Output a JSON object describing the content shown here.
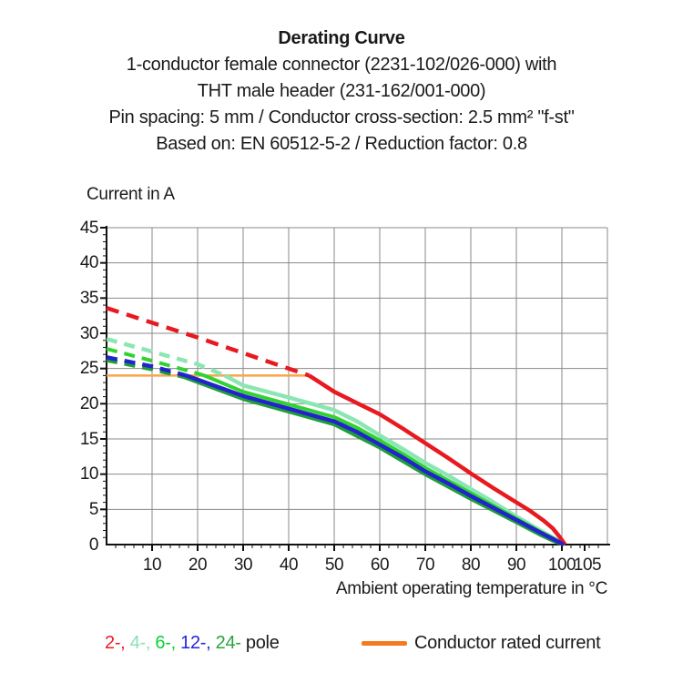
{
  "title": {
    "main": "Derating Curve",
    "lines": [
      "1-conductor female connector (2231-102/026-000) with",
      "THT male header (231-162/001-000)",
      "Pin spacing: 5 mm / Conductor cross-section: 2.5 mm² \"f-st\"",
      "Based on: EN 60512-5-2 / Reduction factor: 0.8"
    ]
  },
  "axes": {
    "y_title": "Current in A",
    "x_title": "Ambient operating temperature in °C"
  },
  "legend": {
    "pole_items": [
      {
        "text": "2-,",
        "color": "#ed1c24"
      },
      {
        "text": "4-,",
        "color": "#8ce0b8"
      },
      {
        "text": "6-,",
        "color": "#0ad137"
      },
      {
        "text": "12-,",
        "color": "#2323dd"
      },
      {
        "text": "24-",
        "color": "#28a33c"
      }
    ],
    "pole_suffix": "pole",
    "rated_label": "Conductor rated current",
    "rated_swatch_color": "#f5791f"
  },
  "chart_data": {
    "type": "line",
    "title": "Derating Curve",
    "xlabel": "Ambient operating temperature in °C",
    "ylabel": "Current in A",
    "xlim": [
      0,
      110
    ],
    "ylim": [
      0,
      45
    ],
    "grid": true,
    "grid_color": "#8a8a8a",
    "axis_color": "#111111",
    "x_major_ticks": [
      10,
      20,
      30,
      40,
      50,
      60,
      70,
      80,
      90,
      100,
      105
    ],
    "x_grid_ticks": [
      10,
      20,
      30,
      40,
      50,
      60,
      70,
      80,
      90,
      100
    ],
    "x_minor_step": 2,
    "y_ticks": [
      0,
      5,
      10,
      15,
      20,
      25,
      30,
      35,
      40,
      45
    ],
    "y_minor_step": 1,
    "rated_line": {
      "name": "Conductor rated current",
      "value": 24,
      "x_start": 0,
      "x_end": 44.5,
      "color": "#f9a54a",
      "width": 2.5
    },
    "series": [
      {
        "name": "4-pole",
        "color": "#8ce6b4",
        "width": 4.5,
        "dash": "12 8",
        "dashed_points": [
          [
            0,
            29.2
          ],
          [
            10,
            27.4
          ],
          [
            20,
            25.6
          ],
          [
            26,
            24.0
          ]
        ],
        "solid_points": [
          [
            26,
            24.0
          ],
          [
            30,
            22.6
          ],
          [
            40,
            20.9
          ],
          [
            50,
            19.1
          ],
          [
            55,
            17.5
          ],
          [
            60,
            15.5
          ],
          [
            65,
            13.6
          ],
          [
            70,
            11.6
          ],
          [
            75,
            9.8
          ],
          [
            80,
            7.9
          ],
          [
            85,
            6.0
          ],
          [
            90,
            4.0
          ],
          [
            95,
            2.1
          ],
          [
            98,
            1.0
          ],
          [
            100.6,
            0
          ]
        ]
      },
      {
        "name": "6-pole",
        "color": "#2fd32f",
        "width": 4,
        "dash": "12 8",
        "dashed_points": [
          [
            0,
            27.8
          ],
          [
            10,
            26.1
          ],
          [
            20,
            24.3
          ],
          [
            21.5,
            24.0
          ]
        ],
        "solid_points": [
          [
            21.5,
            24.0
          ],
          [
            30,
            21.7
          ],
          [
            40,
            19.9
          ],
          [
            50,
            18.1
          ],
          [
            55,
            16.6
          ],
          [
            60,
            14.8
          ],
          [
            65,
            12.9
          ],
          [
            70,
            10.9
          ],
          [
            75,
            9.1
          ],
          [
            80,
            7.3
          ],
          [
            85,
            5.5
          ],
          [
            90,
            3.7
          ],
          [
            95,
            1.9
          ],
          [
            98,
            0.9
          ],
          [
            100.5,
            0
          ]
        ]
      },
      {
        "name": "2-pole",
        "color": "#e8191f",
        "width": 4.5,
        "dash": "14 9",
        "dashed_points": [
          [
            0,
            33.6
          ],
          [
            10,
            31.5
          ],
          [
            20,
            29.4
          ],
          [
            30,
            27.2
          ],
          [
            40,
            25.0
          ],
          [
            44.5,
            24.0
          ]
        ],
        "solid_points": [
          [
            44.5,
            24.0
          ],
          [
            50,
            21.7
          ],
          [
            55,
            20.1
          ],
          [
            60,
            18.5
          ],
          [
            65,
            16.5
          ],
          [
            70,
            14.4
          ],
          [
            75,
            12.3
          ],
          [
            80,
            10.1
          ],
          [
            85,
            8.0
          ],
          [
            90,
            6.0
          ],
          [
            93,
            4.8
          ],
          [
            96,
            3.4
          ],
          [
            98,
            2.3
          ],
          [
            99.5,
            1.1
          ],
          [
            100.7,
            0
          ]
        ]
      },
      {
        "name": "24-pole",
        "color": "#1f9e38",
        "width": 4.5,
        "dash": "12 8",
        "dashed_points": [
          [
            0,
            26.2
          ],
          [
            10,
            24.9
          ],
          [
            17,
            23.8
          ]
        ],
        "solid_points": [
          [
            17,
            23.8
          ],
          [
            30,
            20.7
          ],
          [
            40,
            18.9
          ],
          [
            50,
            17.1
          ],
          [
            60,
            13.8
          ],
          [
            70,
            10.0
          ],
          [
            80,
            6.5
          ],
          [
            90,
            3.2
          ],
          [
            95,
            1.5
          ],
          [
            98,
            0.6
          ],
          [
            100.4,
            0
          ]
        ]
      },
      {
        "name": "12-pole",
        "color": "#2323cc",
        "width": 4.5,
        "dash": "12 8",
        "dashed_points": [
          [
            0,
            26.6
          ],
          [
            10,
            25.3
          ],
          [
            17.5,
            24.0
          ]
        ],
        "solid_points": [
          [
            17.5,
            24.0
          ],
          [
            30,
            21.1
          ],
          [
            40,
            19.3
          ],
          [
            50,
            17.5
          ],
          [
            55,
            16.0
          ],
          [
            60,
            14.2
          ],
          [
            65,
            12.4
          ],
          [
            70,
            10.4
          ],
          [
            75,
            8.7
          ],
          [
            80,
            6.9
          ],
          [
            85,
            5.2
          ],
          [
            90,
            3.5
          ],
          [
            95,
            1.8
          ],
          [
            98,
            0.8
          ],
          [
            100.4,
            0
          ]
        ]
      }
    ]
  }
}
